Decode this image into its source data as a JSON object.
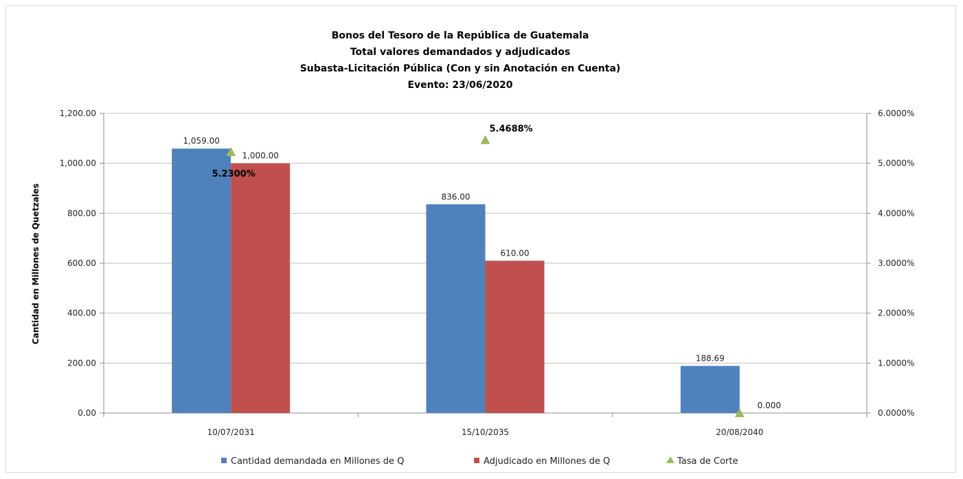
{
  "chart_data": {
    "type": "bar",
    "title_lines": [
      "Bonos del Tesoro de la República de Guatemala",
      "Total valores demandados y adjudicados",
      "Subasta-Licitación Pública (Con y sin Anotación en Cuenta)",
      "Evento: 23/06/2020"
    ],
    "categories": [
      "10/07/2031",
      "15/10/2035",
      "20/08/2040"
    ],
    "ylabel": "Cantidad en Millones de Quetzales",
    "ylim": [
      0,
      1200
    ],
    "y2lim": [
      0,
      6
    ],
    "y_ticks": [
      "0.00",
      "200.00",
      "400.00",
      "600.00",
      "800.00",
      "1,000.00",
      "1,200.00"
    ],
    "y2_ticks": [
      "0.0000%",
      "1.0000%",
      "2.0000%",
      "3.0000%",
      "4.0000%",
      "5.0000%",
      "6.0000%"
    ],
    "grid": true,
    "legend_position": "bottom",
    "series": [
      {
        "name": "Cantidad demandada en Millones de Q",
        "kind": "bar",
        "axis": "left",
        "color": "#4F81BD",
        "values": [
          1059.0,
          836.0,
          188.69
        ],
        "labels": [
          "1,059.00",
          "836.00",
          "188.69"
        ]
      },
      {
        "name": "Adjudicado en Millones de Q",
        "kind": "bar",
        "axis": "left",
        "color": "#C0504D",
        "values": [
          1000.0,
          610.0,
          0.0
        ],
        "labels": [
          "1,000.00",
          "610.00",
          "0.000"
        ]
      },
      {
        "name": "Tasa de Corte",
        "kind": "marker",
        "marker": "triangle",
        "axis": "right",
        "color": "#9BBB59",
        "values": [
          5.23,
          5.4688,
          0
        ],
        "labels": [
          "5.2300%",
          "5.4688%",
          ""
        ]
      }
    ]
  }
}
